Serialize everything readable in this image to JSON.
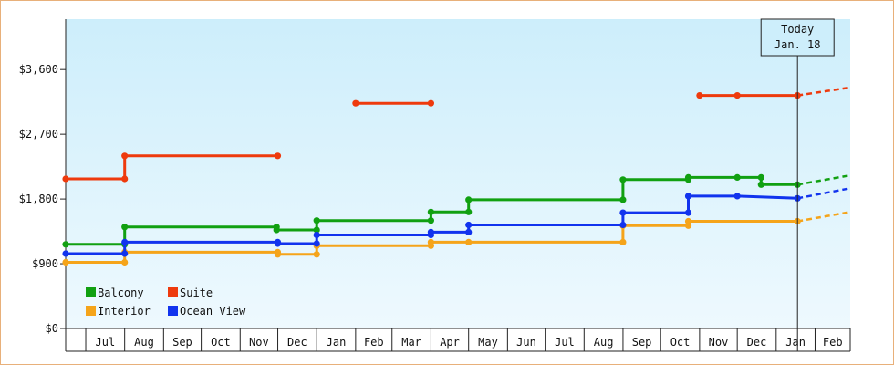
{
  "chart_data": {
    "type": "line",
    "subtype": "step",
    "x_range": [
      "2023-06-15",
      "2025-03-01"
    ],
    "ylim": [
      0,
      4300
    ],
    "y_ticks": [
      0,
      900,
      1800,
      2700,
      3600
    ],
    "y_tick_labels": [
      "$0",
      "$900",
      "$1,800",
      "$2,700",
      "$3,600"
    ],
    "x_ticks": [
      {
        "date": "2023-07-01",
        "label": "Jul"
      },
      {
        "date": "2023-08-01",
        "label": "Aug"
      },
      {
        "date": "2023-09-01",
        "label": "Sep"
      },
      {
        "date": "2023-10-01",
        "label": "Oct"
      },
      {
        "date": "2023-11-01",
        "label": "Nov"
      },
      {
        "date": "2023-12-01",
        "label": "Dec"
      },
      {
        "date": "2024-01-01",
        "label": "Jan"
      },
      {
        "date": "2024-02-01",
        "label": "Feb"
      },
      {
        "date": "2024-03-01",
        "label": "Mar"
      },
      {
        "date": "2024-04-01",
        "label": "Apr"
      },
      {
        "date": "2024-05-01",
        "label": "May"
      },
      {
        "date": "2024-06-01",
        "label": "Jun"
      },
      {
        "date": "2024-07-01",
        "label": "Jul"
      },
      {
        "date": "2024-08-01",
        "label": "Aug"
      },
      {
        "date": "2024-09-01",
        "label": "Sep"
      },
      {
        "date": "2024-10-01",
        "label": "Oct"
      },
      {
        "date": "2024-11-01",
        "label": "Nov"
      },
      {
        "date": "2024-12-01",
        "label": "Dec"
      },
      {
        "date": "2025-01-01",
        "label": "Jan"
      },
      {
        "date": "2025-02-01",
        "label": "Feb"
      }
    ],
    "today": {
      "date": "2025-01-18",
      "label_line1": "Today",
      "label_line2": "Jan. 18"
    },
    "grid": false,
    "legend_position": "bottom-left",
    "series": [
      {
        "name": "Balcony",
        "color": "#11a011",
        "points": [
          [
            "2023-06-15",
            1170
          ],
          [
            "2023-08-01",
            1170
          ],
          [
            "2023-08-01",
            1410
          ],
          [
            "2023-11-30",
            1410
          ],
          [
            "2023-11-30",
            1370
          ],
          [
            "2024-01-01",
            1370
          ],
          [
            "2024-01-01",
            1500
          ],
          [
            "2024-04-01",
            1500
          ],
          [
            "2024-04-01",
            1620
          ],
          [
            "2024-05-01",
            1620
          ],
          [
            "2024-05-01",
            1790
          ],
          [
            "2024-09-01",
            1790
          ],
          [
            "2024-09-01",
            2070
          ],
          [
            "2024-10-23",
            2070
          ],
          [
            "2024-10-23",
            2100
          ],
          [
            "2024-12-01",
            2100
          ],
          [
            "2024-12-20",
            2100
          ],
          [
            "2024-12-20",
            2000
          ],
          [
            "2025-01-18",
            2000
          ]
        ],
        "projection": [
          [
            "2025-01-18",
            2000
          ],
          [
            "2025-03-01",
            2130
          ]
        ]
      },
      {
        "name": "Suite",
        "color": "#ee3a0d",
        "segments": [
          [
            [
              "2023-06-15",
              2080
            ],
            [
              "2023-08-01",
              2080
            ],
            [
              "2023-08-01",
              2400
            ],
            [
              "2023-12-01",
              2400
            ]
          ],
          [
            [
              "2024-02-01",
              3130
            ],
            [
              "2024-04-01",
              3130
            ]
          ],
          [
            [
              "2024-11-01",
              3240
            ],
            [
              "2024-12-01",
              3240
            ],
            [
              "2025-01-18",
              3240
            ]
          ]
        ],
        "projection": [
          [
            "2025-01-18",
            3240
          ],
          [
            "2025-03-01",
            3350
          ]
        ]
      },
      {
        "name": "Interior",
        "color": "#f5a41a",
        "points": [
          [
            "2023-06-15",
            920
          ],
          [
            "2023-08-01",
            920
          ],
          [
            "2023-08-01",
            1060
          ],
          [
            "2023-12-01",
            1060
          ],
          [
            "2023-12-01",
            1030
          ],
          [
            "2024-01-01",
            1030
          ],
          [
            "2024-01-01",
            1150
          ],
          [
            "2024-04-01",
            1150
          ],
          [
            "2024-04-01",
            1200
          ],
          [
            "2024-05-01",
            1200
          ],
          [
            "2024-09-01",
            1200
          ],
          [
            "2024-09-01",
            1430
          ],
          [
            "2024-10-23",
            1430
          ],
          [
            "2024-10-23",
            1490
          ],
          [
            "2025-01-18",
            1490
          ]
        ],
        "projection": [
          [
            "2025-01-18",
            1490
          ],
          [
            "2025-03-01",
            1620
          ]
        ]
      },
      {
        "name": "Ocean View",
        "color": "#1133ee",
        "points": [
          [
            "2023-06-15",
            1040
          ],
          [
            "2023-08-01",
            1040
          ],
          [
            "2023-08-01",
            1200
          ],
          [
            "2023-12-01",
            1200
          ],
          [
            "2023-12-01",
            1180
          ],
          [
            "2024-01-01",
            1180
          ],
          [
            "2024-01-01",
            1300
          ],
          [
            "2024-04-01",
            1300
          ],
          [
            "2024-04-01",
            1340
          ],
          [
            "2024-05-01",
            1340
          ],
          [
            "2024-05-01",
            1440
          ],
          [
            "2024-09-01",
            1440
          ],
          [
            "2024-09-01",
            1610
          ],
          [
            "2024-10-23",
            1610
          ],
          [
            "2024-10-23",
            1840
          ],
          [
            "2024-12-01",
            1840
          ],
          [
            "2025-01-18",
            1810
          ]
        ],
        "projection": [
          [
            "2025-01-18",
            1810
          ],
          [
            "2025-03-01",
            1950
          ]
        ]
      }
    ]
  }
}
